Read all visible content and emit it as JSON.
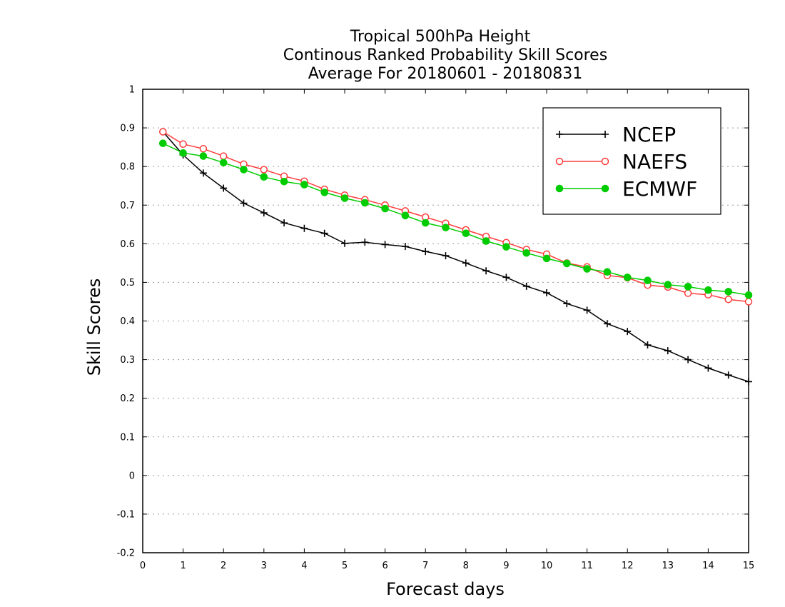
{
  "chart_data": {
    "type": "line",
    "title": [
      "Tropical 500hPa Height",
      "Continous Ranked Probability Skill Scores",
      "Average For 20180601 - 20180831"
    ],
    "xlabel": "Forecast days",
    "ylabel": "Skill Scores",
    "xlim": [
      0,
      15
    ],
    "ylim": [
      -0.2,
      1
    ],
    "xticks": [
      0,
      1,
      2,
      3,
      4,
      5,
      6,
      7,
      8,
      9,
      10,
      11,
      12,
      13,
      14,
      15
    ],
    "yticks": [
      -0.2,
      -0.1,
      0,
      0.1,
      0.2,
      0.3,
      0.4,
      0.5,
      0.6,
      0.7,
      0.8,
      0.9,
      1
    ],
    "ytick_labels": [
      "-0.2",
      "-0.1",
      "0",
      "0.1",
      "0.2",
      "0.3",
      "0.4",
      "0.5",
      "0.6",
      "0.7",
      "0.8",
      "0.9",
      "1"
    ],
    "grid": "horizontal-dotted",
    "legend_position": "top-right",
    "x": [
      0.5,
      1,
      1.5,
      2,
      2.5,
      3,
      3.5,
      4,
      4.5,
      5,
      5.5,
      6,
      6.5,
      7,
      7.5,
      8,
      8.5,
      9,
      9.5,
      10,
      10.5,
      11,
      11.5,
      12,
      12.5,
      13,
      13.5,
      14,
      14.5,
      15
    ],
    "series": [
      {
        "name": "NCEP",
        "color": "#000000",
        "marker": "plus",
        "values": [
          0.89,
          0.83,
          0.783,
          0.744,
          0.705,
          0.68,
          0.654,
          0.64,
          0.627,
          0.601,
          0.604,
          0.598,
          0.593,
          0.58,
          0.569,
          0.55,
          0.53,
          0.513,
          0.49,
          0.473,
          0.445,
          0.428,
          0.393,
          0.373,
          0.338,
          0.323,
          0.3,
          0.278,
          0.26,
          0.243
        ]
      },
      {
        "name": "NAEFS",
        "color": "#ff3b3b",
        "marker": "open-circle",
        "values": [
          0.89,
          0.858,
          0.846,
          0.827,
          0.806,
          0.792,
          0.775,
          0.762,
          0.741,
          0.726,
          0.714,
          0.7,
          0.685,
          0.669,
          0.653,
          0.636,
          0.619,
          0.603,
          0.585,
          0.573,
          0.55,
          0.54,
          0.518,
          0.512,
          0.493,
          0.488,
          0.472,
          0.468,
          0.456,
          0.45
        ]
      },
      {
        "name": "ECMWF",
        "color": "#00cc00",
        "marker": "filled-circle",
        "values": [
          0.86,
          0.835,
          0.827,
          0.81,
          0.792,
          0.773,
          0.761,
          0.753,
          0.733,
          0.718,
          0.706,
          0.691,
          0.673,
          0.654,
          0.642,
          0.627,
          0.607,
          0.592,
          0.576,
          0.562,
          0.549,
          0.535,
          0.527,
          0.513,
          0.505,
          0.494,
          0.489,
          0.48,
          0.476,
          0.467
        ]
      }
    ]
  }
}
